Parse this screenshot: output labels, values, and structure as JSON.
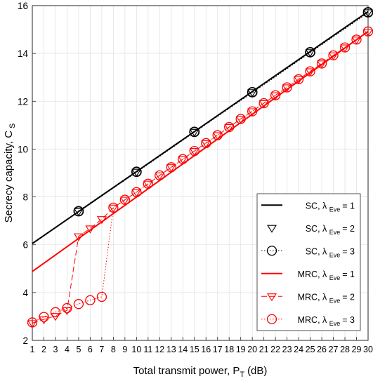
{
  "chart_data": {
    "type": "line",
    "title": "",
    "xlabel": "Total transmit power, P",
    "xlabel_sub": "T",
    "xlabel_unit": "(dB)",
    "ylabel": "Secrecy capacity, C",
    "ylabel_sub": "S",
    "xlim": [
      1,
      30
    ],
    "ylim": [
      2,
      16
    ],
    "xticks": [
      1,
      2,
      3,
      4,
      5,
      6,
      7,
      8,
      9,
      10,
      11,
      12,
      13,
      14,
      15,
      16,
      17,
      18,
      19,
      20,
      21,
      22,
      23,
      24,
      25,
      26,
      27,
      28,
      29,
      30
    ],
    "yticks": [
      2,
      4,
      6,
      8,
      10,
      12,
      14,
      16
    ],
    "grid": true,
    "legend_position": "bottom-right",
    "colors": {
      "sc": "#000000",
      "mrc": "#ff0000"
    },
    "series": [
      {
        "key": "sc1",
        "name": "SC, λ",
        "name_sub": "Eve",
        "name_suffix": "= 1",
        "color": "#000000",
        "line": "solid",
        "marker": "none",
        "x": [
          1,
          30
        ],
        "y": [
          6.05,
          15.75
        ]
      },
      {
        "key": "sc2",
        "name": "SC, λ",
        "name_sub": "Eve",
        "name_suffix": "= 2",
        "color": "#000000",
        "line": "none",
        "marker": "triangle-down",
        "x": [
          5,
          10,
          15,
          20,
          25,
          30
        ],
        "y": [
          7.4,
          9.05,
          10.72,
          12.38,
          14.05,
          15.72
        ]
      },
      {
        "key": "sc3",
        "name": "SC, λ",
        "name_sub": "Eve",
        "name_suffix": "= 3",
        "color": "#000000",
        "line": "dotted",
        "marker": "circle",
        "x": [
          5,
          10,
          15,
          20,
          25,
          30
        ],
        "y": [
          7.4,
          9.05,
          10.72,
          12.38,
          14.05,
          15.72
        ]
      },
      {
        "key": "mrc1",
        "name": "MRC, λ",
        "name_sub": "Eve",
        "name_suffix": "= 1",
        "color": "#ff0000",
        "line": "solid",
        "marker": "none",
        "x": [
          1,
          30
        ],
        "y": [
          4.88,
          14.92
        ]
      },
      {
        "key": "mrc2",
        "name": "MRC, λ",
        "name_sub": "Eve",
        "name_suffix": "= 2",
        "color": "#ff0000",
        "line": "dashed",
        "marker": "triangle-down",
        "x": [
          1,
          2,
          3,
          4,
          5,
          6,
          7,
          8,
          9,
          10,
          11,
          12,
          13,
          14,
          15,
          16,
          17,
          18,
          19,
          20,
          21,
          22,
          23,
          24,
          25,
          26,
          27,
          28,
          29,
          30
        ],
        "y": [
          2.72,
          2.88,
          3.02,
          3.26,
          6.35,
          6.68,
          7.07,
          7.55,
          7.88,
          8.2,
          8.55,
          8.9,
          9.24,
          9.58,
          9.92,
          10.25,
          10.58,
          10.92,
          11.26,
          11.58,
          11.92,
          12.25,
          12.58,
          12.92,
          13.25,
          13.58,
          13.92,
          14.25,
          14.58,
          14.9
        ]
      },
      {
        "key": "mrc3",
        "name": "MRC, λ",
        "name_sub": "Eve",
        "name_suffix": "= 3",
        "color": "#ff0000",
        "line": "dotted",
        "marker": "circle",
        "x": [
          1,
          2,
          3,
          4,
          5,
          6,
          7,
          8,
          9,
          10,
          11,
          12,
          13,
          14,
          15,
          16,
          17,
          18,
          19,
          20,
          21,
          22,
          23,
          24,
          25,
          26,
          27,
          28,
          29,
          30
        ],
        "y": [
          2.75,
          2.98,
          3.18,
          3.35,
          3.52,
          3.68,
          3.82,
          7.55,
          7.88,
          8.2,
          8.55,
          8.9,
          9.24,
          9.58,
          9.92,
          10.25,
          10.58,
          10.92,
          11.26,
          11.58,
          11.92,
          12.25,
          12.58,
          12.92,
          13.25,
          13.58,
          13.92,
          14.25,
          14.58,
          14.92
        ]
      }
    ]
  }
}
